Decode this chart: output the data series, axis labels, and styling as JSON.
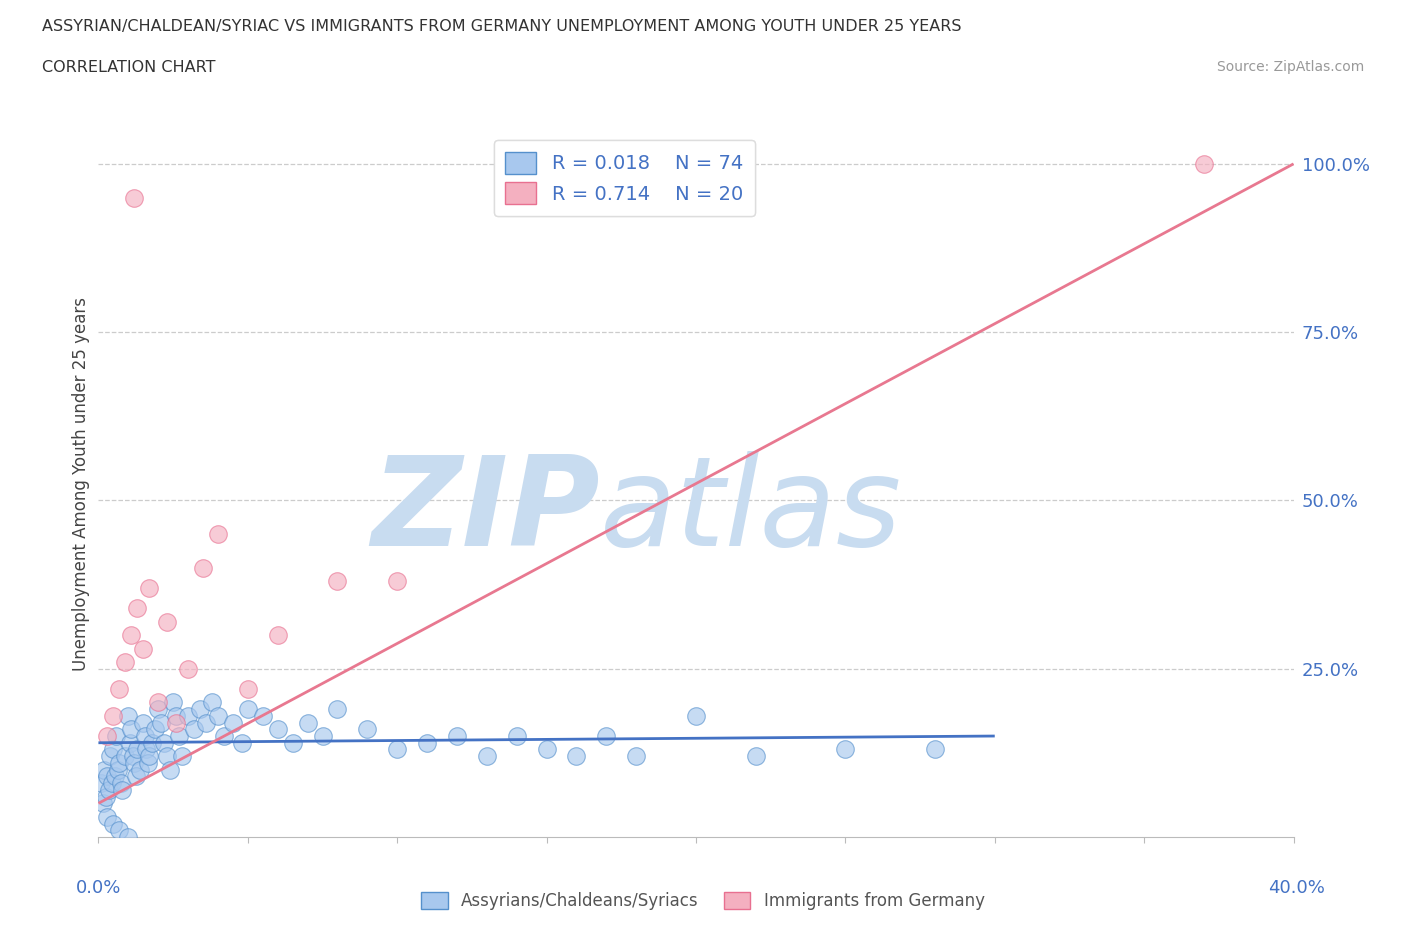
{
  "title_line1": "ASSYRIAN/CHALDEAN/SYRIAC VS IMMIGRANTS FROM GERMANY UNEMPLOYMENT AMONG YOUTH UNDER 25 YEARS",
  "title_line2": "CORRELATION CHART",
  "source_text": "Source: ZipAtlas.com",
  "ylabel": "Unemployment Among Youth under 25 years",
  "ytick_labels": [
    "100.0%",
    "75.0%",
    "50.0%",
    "25.0%"
  ],
  "ytick_values": [
    100,
    75,
    50,
    25
  ],
  "xlim": [
    0,
    40
  ],
  "ylim": [
    0,
    105
  ],
  "legend_r1": "R = 0.018",
  "legend_n1": "N = 74",
  "legend_r2": "R = 0.714",
  "legend_n2": "N = 20",
  "color_blue": "#A8C8EE",
  "color_pink": "#F4B0C0",
  "color_blue_edge": "#5590CC",
  "color_pink_edge": "#E87090",
  "color_blue_line": "#4472C4",
  "color_pink_line": "#E87890",
  "color_text_blue": "#4472C4",
  "watermark_zip": "#C8DCF0",
  "watermark_atlas": "#C8DCF0",
  "background": "#FFFFFF",
  "blue_x": [
    0.1,
    0.15,
    0.2,
    0.25,
    0.3,
    0.35,
    0.4,
    0.45,
    0.5,
    0.55,
    0.6,
    0.65,
    0.7,
    0.75,
    0.8,
    0.9,
    1.0,
    1.05,
    1.1,
    1.15,
    1.2,
    1.25,
    1.3,
    1.4,
    1.5,
    1.55,
    1.6,
    1.65,
    1.7,
    1.8,
    1.9,
    2.0,
    2.1,
    2.2,
    2.3,
    2.4,
    2.5,
    2.6,
    2.7,
    2.8,
    3.0,
    3.2,
    3.4,
    3.6,
    3.8,
    4.0,
    4.2,
    4.5,
    4.8,
    5.0,
    5.5,
    6.0,
    6.5,
    7.0,
    7.5,
    8.0,
    9.0,
    10.0,
    11.0,
    12.0,
    13.0,
    14.0,
    15.0,
    16.0,
    17.0,
    18.0,
    20.0,
    22.0,
    25.0,
    28.0,
    0.3,
    0.5,
    0.7,
    1.0
  ],
  "blue_y": [
    8,
    5,
    10,
    6,
    9,
    7,
    12,
    8,
    13,
    9,
    15,
    10,
    11,
    8,
    7,
    12,
    18,
    14,
    16,
    12,
    11,
    9,
    13,
    10,
    17,
    15,
    13,
    11,
    12,
    14,
    16,
    19,
    17,
    14,
    12,
    10,
    20,
    18,
    15,
    12,
    18,
    16,
    19,
    17,
    20,
    18,
    15,
    17,
    14,
    19,
    18,
    16,
    14,
    17,
    15,
    19,
    16,
    13,
    14,
    15,
    12,
    15,
    13,
    12,
    15,
    12,
    18,
    12,
    13,
    13,
    3,
    2,
    1,
    0
  ],
  "pink_x": [
    0.3,
    0.5,
    0.7,
    0.9,
    1.1,
    1.3,
    1.5,
    1.7,
    2.0,
    2.3,
    2.6,
    3.0,
    3.5,
    4.0,
    5.0,
    6.0,
    8.0,
    10.0,
    1.2,
    37.0
  ],
  "pink_y": [
    15,
    18,
    22,
    26,
    30,
    34,
    28,
    37,
    20,
    32,
    17,
    25,
    40,
    45,
    22,
    30,
    38,
    38,
    95,
    100
  ],
  "blue_trend_x": [
    0,
    30
  ],
  "blue_trend_y": [
    14,
    15
  ],
  "pink_trend_x": [
    0,
    40
  ],
  "pink_trend_y": [
    5,
    100
  ]
}
